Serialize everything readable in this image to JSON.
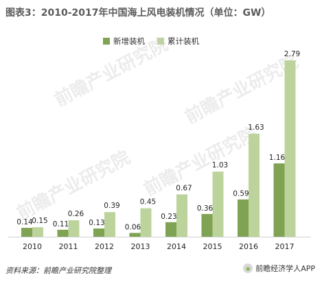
{
  "title": "图表3：2010-2017年中国海上风电装机情况（单位：GW）",
  "legend": {
    "new_label": "新增装机",
    "cum_label": "累计装机"
  },
  "colors": {
    "new": "#7fa253",
    "cum": "#bcd49b"
  },
  "source": "资料来源：前瞻产业研究院整理",
  "brand": "前瞻经济学人APP",
  "watermark": "前瞻产业研究院",
  "chart_data": {
    "type": "bar",
    "categories": [
      "2010",
      "2011",
      "2012",
      "2013",
      "2014",
      "2015",
      "2016",
      "2017"
    ],
    "series": [
      {
        "name": "新增装机",
        "values": [
          0.14,
          0.11,
          0.13,
          0.06,
          0.23,
          0.36,
          0.59,
          1.16
        ]
      },
      {
        "name": "累计装机",
        "values": [
          0.15,
          0.26,
          0.39,
          0.45,
          0.67,
          1.03,
          1.63,
          2.79
        ]
      }
    ],
    "value_labels": [
      [
        "0.14",
        "0.11",
        "0.13",
        "0.06",
        "0.23",
        "0.36",
        "0.59",
        "1.16"
      ],
      [
        "0.15",
        "0.26",
        "0.39",
        "0.45",
        "0.67",
        "1.03",
        "1.63",
        "2.79"
      ]
    ],
    "ylim": [
      0,
      2.79
    ],
    "grid": false,
    "legend_position": "top-center"
  }
}
